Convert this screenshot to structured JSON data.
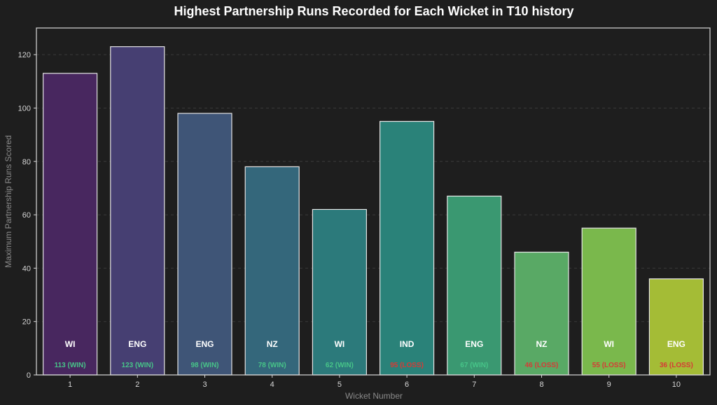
{
  "chart_data": {
    "type": "bar",
    "title": "Highest Partnership Runs Recorded for Each Wicket in T10 history",
    "xlabel": "Wicket Number",
    "ylabel": "Maximum Partnership Runs Scored",
    "ylim": [
      0,
      130
    ],
    "yticks": [
      0,
      20,
      40,
      60,
      80,
      100,
      120
    ],
    "grid": true,
    "categories": [
      "1",
      "2",
      "3",
      "4",
      "5",
      "6",
      "7",
      "8",
      "9",
      "10"
    ],
    "values": [
      113,
      123,
      98,
      78,
      62,
      95,
      67,
      46,
      55,
      36
    ],
    "teams": [
      "WI",
      "ENG",
      "ENG",
      "NZ",
      "WI",
      "IND",
      "ENG",
      "NZ",
      "WI",
      "ENG"
    ],
    "results": [
      "113 (WIN)",
      "123 (WIN)",
      "98 (WIN)",
      "78 (WIN)",
      "62 (WIN)",
      "95 (LOSS)",
      "67 (WIN)",
      "46 (LOSS)",
      "55 (LOSS)",
      "36 (LOSS)"
    ],
    "bar_colors": [
      "#48275f",
      "#463f72",
      "#3f5577",
      "#34677b",
      "#2c7a7b",
      "#2a8279",
      "#3a9871",
      "#59a965",
      "#7ab84c",
      "#a4bc36"
    ],
    "win_color": "#47c488",
    "loss_color": "#d63b36"
  }
}
